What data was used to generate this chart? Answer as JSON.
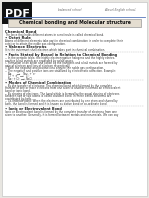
{
  "bg_color": "#e8e6e1",
  "page_bg": "#ffffff",
  "pdf_box_color": "#111111",
  "pdf_text": "PDF",
  "header_left": "balanced school",
  "header_right": "A-level English school.",
  "title": "Chemical bonding and Molecular structure",
  "title_box_color": "#e4ddd0",
  "title_border_color": "#999999",
  "blue_line_color": "#5577bb",
  "text_color": "#222222",
  "body_color": "#333333"
}
